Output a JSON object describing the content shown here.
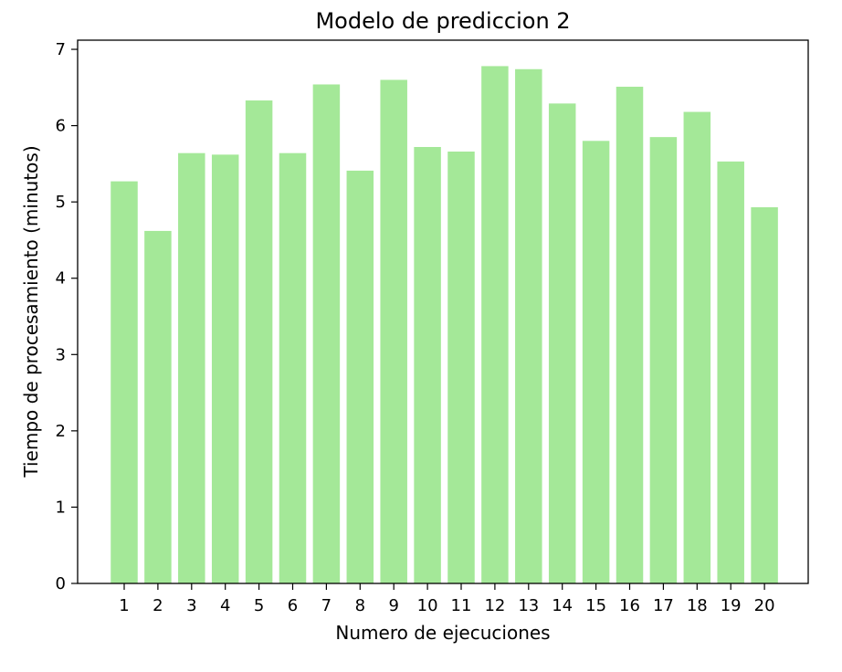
{
  "chart_data": {
    "type": "bar",
    "title": "Modelo de prediccion 2",
    "xlabel": "Numero de ejecuciones",
    "ylabel": "Tiempo de procesamiento (minutos)",
    "categories": [
      "1",
      "2",
      "3",
      "4",
      "5",
      "6",
      "7",
      "8",
      "9",
      "10",
      "11",
      "12",
      "13",
      "14",
      "15",
      "16",
      "17",
      "18",
      "19",
      "20"
    ],
    "values": [
      5.27,
      4.62,
      5.64,
      5.62,
      6.33,
      5.64,
      6.54,
      5.41,
      6.6,
      5.72,
      5.66,
      6.78,
      6.74,
      6.29,
      5.8,
      6.51,
      5.85,
      6.18,
      5.53,
      4.93
    ],
    "yticks": [
      "0",
      "1",
      "2",
      "3",
      "4",
      "5",
      "6",
      "7"
    ],
    "ylim": [
      0,
      7.12
    ],
    "grid": false,
    "bar_color": "#a4e898",
    "axis_color": "#000000"
  }
}
